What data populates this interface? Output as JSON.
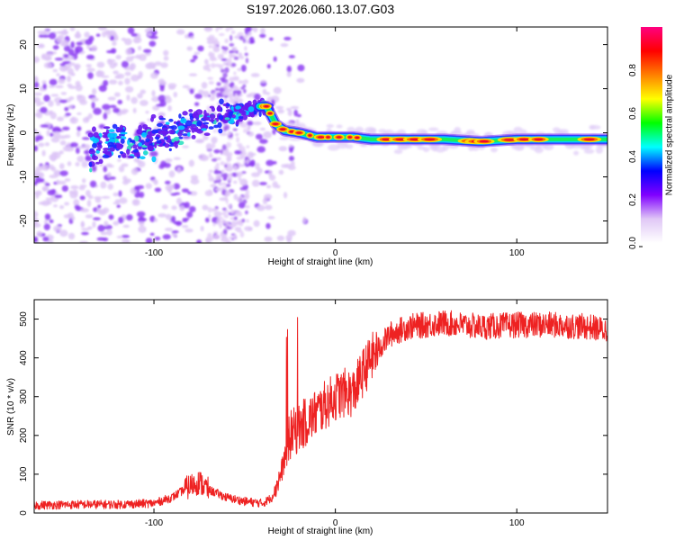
{
  "title": "S197.2026.060.13.07.G03",
  "chart_data": [
    {
      "type": "heatmap",
      "xlabel": "Height of straight line (km)",
      "ylabel": "Frequency (Hz)",
      "xlim": [
        -166,
        150
      ],
      "ylim": [
        -25,
        24
      ],
      "xticks": [
        -100,
        0,
        100
      ],
      "yticks": [
        -20,
        -10,
        0,
        10,
        20
      ],
      "ridge": [
        {
          "x": -160,
          "y": -6
        },
        {
          "x": -140,
          "y": -4
        },
        {
          "x": -120,
          "y": -2
        },
        {
          "x": -110,
          "y": -2
        },
        {
          "x": -100,
          "y": -1
        },
        {
          "x": -90,
          "y": 0
        },
        {
          "x": -80,
          "y": 2
        },
        {
          "x": -70,
          "y": 3
        },
        {
          "x": -60,
          "y": 4
        },
        {
          "x": -50,
          "y": 5
        },
        {
          "x": -42,
          "y": 6
        },
        {
          "x": -38,
          "y": 6
        },
        {
          "x": -33,
          "y": 2
        },
        {
          "x": -28,
          "y": 0.5
        },
        {
          "x": -20,
          "y": 0
        },
        {
          "x": -10,
          "y": -1
        },
        {
          "x": 0,
          "y": -1
        },
        {
          "x": 10,
          "y": -1
        },
        {
          "x": 20,
          "y": -1.5
        },
        {
          "x": 40,
          "y": -1.5
        },
        {
          "x": 60,
          "y": -1.5
        },
        {
          "x": 80,
          "y": -2
        },
        {
          "x": 100,
          "y": -1.5
        },
        {
          "x": 120,
          "y": -1.5
        },
        {
          "x": 150,
          "y": -1.5
        }
      ],
      "colorbar": {
        "label": "Normalized spectral amplitude",
        "ticks": [
          "0.0",
          "0.2",
          "0.4",
          "0.6",
          "0.8"
        ],
        "tick_values": [
          0.0,
          0.2,
          0.4,
          0.6,
          0.8
        ],
        "range": [
          0,
          1
        ],
        "stops": [
          "#ffffff",
          "#e0c8f6",
          "#8000ff",
          "#0000ff",
          "#00ffff",
          "#00ff00",
          "#ffff00",
          "#ff8000",
          "#ff0000",
          "#ff0080"
        ]
      }
    },
    {
      "type": "line",
      "xlabel": "Height of straight line (km)",
      "ylabel": "SNR (10 * v/v)",
      "xlim": [
        -166,
        150
      ],
      "ylim": [
        0,
        550
      ],
      "xticks": [
        -100,
        0,
        100
      ],
      "yticks": [
        0,
        100,
        200,
        300,
        400,
        500
      ],
      "color": "#ee2222",
      "series": [
        {
          "name": "SNR",
          "points": [
            {
              "x": -166,
              "y": 20
            },
            {
              "x": -140,
              "y": 22
            },
            {
              "x": -120,
              "y": 22
            },
            {
              "x": -100,
              "y": 25
            },
            {
              "x": -90,
              "y": 40
            },
            {
              "x": -80,
              "y": 70
            },
            {
              "x": -75,
              "y": 80
            },
            {
              "x": -70,
              "y": 60
            },
            {
              "x": -60,
              "y": 40
            },
            {
              "x": -50,
              "y": 30
            },
            {
              "x": -40,
              "y": 25
            },
            {
              "x": -35,
              "y": 40
            },
            {
              "x": -30,
              "y": 100
            },
            {
              "x": -25,
              "y": 200
            },
            {
              "x": -20,
              "y": 220
            },
            {
              "x": -15,
              "y": 240
            },
            {
              "x": -10,
              "y": 260
            },
            {
              "x": -5,
              "y": 280
            },
            {
              "x": 0,
              "y": 300
            },
            {
              "x": 5,
              "y": 310
            },
            {
              "x": 10,
              "y": 310
            },
            {
              "x": 15,
              "y": 360
            },
            {
              "x": 20,
              "y": 400
            },
            {
              "x": 25,
              "y": 430
            },
            {
              "x": 30,
              "y": 460
            },
            {
              "x": 40,
              "y": 480
            },
            {
              "x": 50,
              "y": 485
            },
            {
              "x": 60,
              "y": 490
            },
            {
              "x": 80,
              "y": 480
            },
            {
              "x": 100,
              "y": 485
            },
            {
              "x": 120,
              "y": 485
            },
            {
              "x": 140,
              "y": 480
            },
            {
              "x": 150,
              "y": 470
            }
          ]
        }
      ]
    }
  ]
}
